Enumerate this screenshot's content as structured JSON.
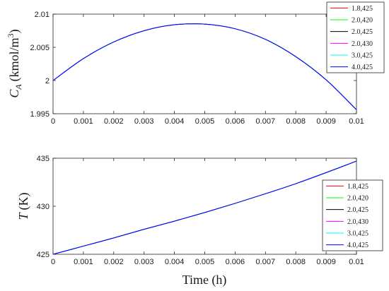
{
  "chart_data": [
    {
      "type": "line",
      "ylabel_main": "C",
      "ylabel_sub": "A",
      "ylabel_unit": "(kmol/m",
      "ylabel_sup": "3",
      "ylabel_close": ")",
      "xlim": [
        0,
        0.01
      ],
      "ylim": [
        1.995,
        2.01
      ],
      "xticks": [
        "0",
        "0.001",
        "0.002",
        "0.003",
        "0.004",
        "0.005",
        "0.006",
        "0.007",
        "0.008",
        "0.009",
        "0.01"
      ],
      "yticks": [
        "1.995",
        "2",
        "2.005",
        "2.01"
      ],
      "legend_position": "top-right",
      "grid": false,
      "x": [
        0,
        0.001,
        0.002,
        0.003,
        0.004,
        0.005,
        0.006,
        0.007,
        0.008,
        0.009,
        0.01
      ],
      "series": [
        {
          "name": "1.8,425",
          "color": "#ff0000",
          "values": [
            2.0,
            2.0033,
            2.0058,
            2.0075,
            2.0084,
            2.0085,
            2.0078,
            2.0062,
            2.0036,
            2.0001,
            1.9956
          ]
        },
        {
          "name": "2.0,420",
          "color": "#00ff00",
          "values": [
            2.0,
            2.0033,
            2.0058,
            2.0075,
            2.0084,
            2.0085,
            2.0078,
            2.0062,
            2.0036,
            2.0001,
            1.9956
          ]
        },
        {
          "name": "2.0,425",
          "color": "#000000",
          "values": [
            2.0,
            2.0033,
            2.0058,
            2.0075,
            2.0084,
            2.0085,
            2.0078,
            2.0062,
            2.0036,
            2.0001,
            1.9956
          ]
        },
        {
          "name": "2.0,430",
          "color": "#ff00ff",
          "values": [
            2.0,
            2.0033,
            2.0058,
            2.0075,
            2.0084,
            2.0085,
            2.0078,
            2.0062,
            2.0036,
            2.0001,
            1.9956
          ]
        },
        {
          "name": "3.0,425",
          "color": "#00ffff",
          "values": [
            2.0,
            2.0033,
            2.0058,
            2.0075,
            2.0084,
            2.0085,
            2.0078,
            2.0062,
            2.0036,
            2.0001,
            1.9956
          ]
        },
        {
          "name": "4.0,425",
          "color": "#0000ff",
          "values": [
            2.0,
            2.0033,
            2.0058,
            2.0075,
            2.0084,
            2.0085,
            2.0078,
            2.0062,
            2.0036,
            2.0001,
            1.9956
          ]
        }
      ]
    },
    {
      "type": "line",
      "ylabel_main": "T",
      "ylabel_unit": "(K)",
      "xlabel": "Time (h)",
      "xlim": [
        0,
        0.01
      ],
      "ylim": [
        425,
        435
      ],
      "xticks": [
        "0",
        "0.001",
        "0.002",
        "0.003",
        "0.004",
        "0.005",
        "0.006",
        "0.007",
        "0.008",
        "0.009",
        "0.01"
      ],
      "yticks": [
        "425",
        "430",
        "435"
      ],
      "legend_position": "bottom-right",
      "grid": false,
      "x": [
        0,
        0.001,
        0.002,
        0.003,
        0.004,
        0.005,
        0.006,
        0.007,
        0.008,
        0.009,
        0.01
      ],
      "series": [
        {
          "name": "1.8,425",
          "color": "#ff0000",
          "values": [
            425.0,
            425.85,
            426.7,
            427.6,
            428.45,
            429.35,
            430.3,
            431.3,
            432.35,
            433.5,
            434.7
          ]
        },
        {
          "name": "2.0,420",
          "color": "#00ff00",
          "values": [
            425.0,
            425.85,
            426.7,
            427.6,
            428.45,
            429.35,
            430.3,
            431.3,
            432.35,
            433.5,
            434.7
          ]
        },
        {
          "name": "2.0,425",
          "color": "#000000",
          "values": [
            425.0,
            425.85,
            426.7,
            427.6,
            428.45,
            429.35,
            430.3,
            431.3,
            432.35,
            433.5,
            434.7
          ]
        },
        {
          "name": "2.0,430",
          "color": "#ff00ff",
          "values": [
            425.0,
            425.85,
            426.7,
            427.6,
            428.45,
            429.35,
            430.3,
            431.3,
            432.35,
            433.5,
            434.7
          ]
        },
        {
          "name": "3.0,425",
          "color": "#00ffff",
          "values": [
            425.0,
            425.85,
            426.7,
            427.6,
            428.45,
            429.35,
            430.3,
            431.3,
            432.35,
            433.5,
            434.7
          ]
        },
        {
          "name": "4.0,425",
          "color": "#0000ff",
          "values": [
            425.0,
            425.85,
            426.7,
            427.6,
            428.45,
            429.35,
            430.3,
            431.3,
            432.35,
            433.5,
            434.7
          ]
        }
      ]
    }
  ]
}
